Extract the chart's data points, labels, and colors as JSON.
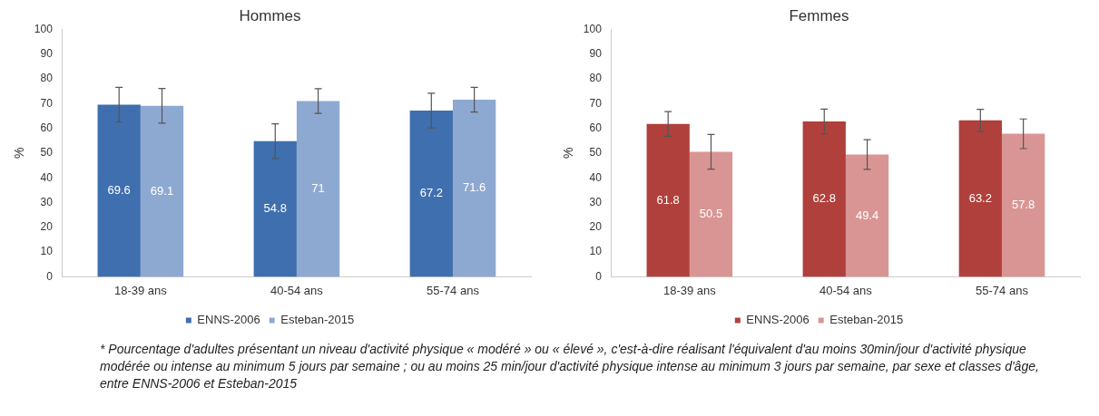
{
  "chart_data": [
    {
      "type": "bar",
      "title": "Hommes",
      "ylabel": "%",
      "categories": [
        "18-39 ans",
        "40-54 ans",
        "55-74 ans"
      ],
      "series": [
        {
          "name": "ENNS-2006",
          "color": "#3f6fae",
          "values": [
            69.6,
            54.8,
            67.2
          ],
          "errors": [
            7,
            7,
            7
          ]
        },
        {
          "name": "Esteban-2015",
          "color": "#8ea9d1",
          "values": [
            69.1,
            71.0,
            71.6
          ],
          "errors": [
            7,
            5,
            5
          ]
        }
      ],
      "ylim": [
        0,
        100
      ],
      "yticks": [
        0,
        10,
        20,
        30,
        40,
        50,
        60,
        70,
        80,
        90,
        100
      ],
      "legend": "bottom",
      "data_labels": true,
      "annotations": [
        "* Pourcentage d'adultes présentant un niveau d'activité physique « modéré » ou « élevé », c'est-à-dire réalisant l'équivalent d'au moins 30min/jour d'activité physique modérée ou intense au minimum 5 jours par semaine ; ou au moins 25 min/jour d'activité physique intense au minimum 3 jours par semaine, par sexe et classes d'âge, entre ENNS-2006 et Esteban-2015"
      ]
    },
    {
      "type": "bar",
      "title": "Femmes",
      "ylabel": "%",
      "categories": [
        "18-39 ans",
        "40-54 ans",
        "55-74 ans"
      ],
      "series": [
        {
          "name": "ENNS-2006",
          "color": "#b0403b",
          "values": [
            61.8,
            62.8,
            63.2
          ],
          "errors": [
            5,
            5,
            4.5
          ]
        },
        {
          "name": "Esteban-2015",
          "color": "#d99594",
          "values": [
            50.5,
            49.4,
            57.8
          ],
          "errors": [
            7,
            6,
            6
          ]
        }
      ],
      "ylim": [
        0,
        100
      ],
      "yticks": [
        0,
        10,
        20,
        30,
        40,
        50,
        60,
        70,
        80,
        90,
        100
      ],
      "legend": "bottom",
      "data_labels": true
    }
  ]
}
